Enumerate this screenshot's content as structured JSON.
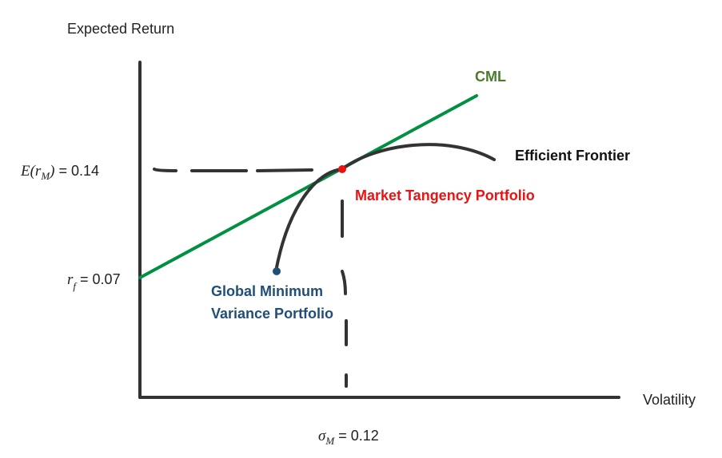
{
  "axes": {
    "y_label": "Expected Return",
    "x_label": "Volatility"
  },
  "ticks": {
    "market_return": {
      "symbol": "E(r",
      "subscript": "M",
      "close": ")",
      "value_text": " = 0.14"
    },
    "risk_free": {
      "symbol": "r",
      "subscript": "f",
      "value_text": " = 0.07"
    },
    "market_vol": {
      "symbol": "σ",
      "subscript": "M",
      "value_text": " = 0.12"
    }
  },
  "labels": {
    "cml": "CML",
    "efficient_frontier": "Efficient Frontier",
    "tangency": "Market Tangency Portfolio",
    "gmv_line1": "Global Minimum",
    "gmv_line2": "Variance Portfolio"
  },
  "colors": {
    "axis": "#333333",
    "cml": "#009040",
    "cml_label": "#4a7a2a",
    "frontier": "#333333",
    "tangency": "#ee1111",
    "gmv": "#1f4e79",
    "text": "#222222"
  }
}
